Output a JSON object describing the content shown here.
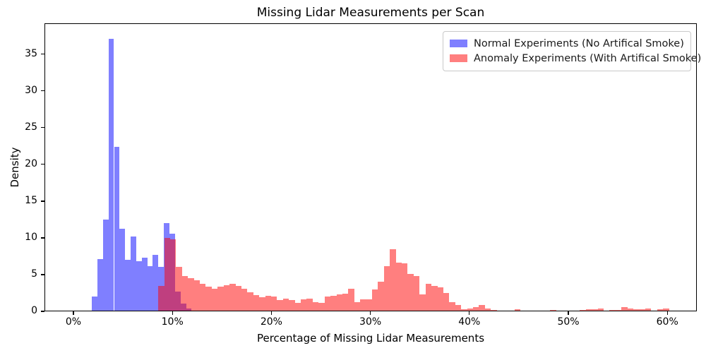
{
  "chart_data": {
    "type": "bar",
    "subtype": "overlapping-density-histograms",
    "title": "Missing Lidar Measurements per Scan",
    "xlabel": "Percentage of Missing Lidar Measurements",
    "ylabel": "Density",
    "x_tick_labels": [
      "0%",
      "10%",
      "20%",
      "30%",
      "40%",
      "50%",
      "60%"
    ],
    "x_tick_values": [
      0,
      10,
      20,
      30,
      40,
      50,
      60
    ],
    "y_tick_values": [
      0,
      5,
      10,
      15,
      20,
      25,
      30,
      35
    ],
    "xlim": [
      -2.9,
      63.0
    ],
    "ylim": [
      0,
      39.2
    ],
    "grid": false,
    "legend_position": "upper right",
    "colors": {
      "normal_fill": "rgba(0,0,255,0.5)",
      "anomaly_fill": "rgba(255,0,0,0.5)",
      "overlap_appearance": "#bf4080",
      "spine": "#000000",
      "background": "#ffffff"
    },
    "series": [
      {
        "name": "Normal Experiments (No Artifical Smoke)",
        "color": "rgba(0,0,255,0.5)",
        "bin_start_percent": 1.79,
        "bin_width_percent": 0.56,
        "densities": [
          1.9,
          7.0,
          12.4,
          37.0,
          22.3,
          11.1,
          6.9,
          10.1,
          6.7,
          7.2,
          6.1,
          7.6,
          6.0,
          11.9,
          10.5,
          2.6,
          1.0,
          0.3
        ]
      },
      {
        "name": "Anomaly Experiments (With Artifical Smoke)",
        "color": "rgba(255,0,0,0.5)",
        "bin_start_percent": 8.5,
        "bin_width_percent": 0.6,
        "densities": [
          3.4,
          9.9,
          9.7,
          6.0,
          4.7,
          4.4,
          4.1,
          3.7,
          3.3,
          3.0,
          3.3,
          3.5,
          3.7,
          3.4,
          3.0,
          2.5,
          2.1,
          1.8,
          2.0,
          1.9,
          1.4,
          1.6,
          1.4,
          1.1,
          1.5,
          1.6,
          1.2,
          1.1,
          1.9,
          2.0,
          2.2,
          2.3,
          3.0,
          1.2,
          1.5,
          1.5,
          2.9,
          3.9,
          6.1,
          8.4,
          6.5,
          6.4,
          5.0,
          4.7,
          2.2,
          3.7,
          3.4,
          3.2,
          2.4,
          1.2,
          0.8,
          0.15,
          0.3,
          0.45,
          0.75,
          0.25,
          0.1,
          0,
          0,
          0,
          0.15,
          0,
          0,
          0,
          0,
          0,
          0.1,
          0,
          0,
          0,
          0,
          0.1,
          0.2,
          0.2,
          0.25,
          0,
          0.05,
          0.1,
          0.5,
          0.3,
          0.15,
          0.15,
          0.25,
          0,
          0.2,
          0.28
        ]
      }
    ]
  }
}
